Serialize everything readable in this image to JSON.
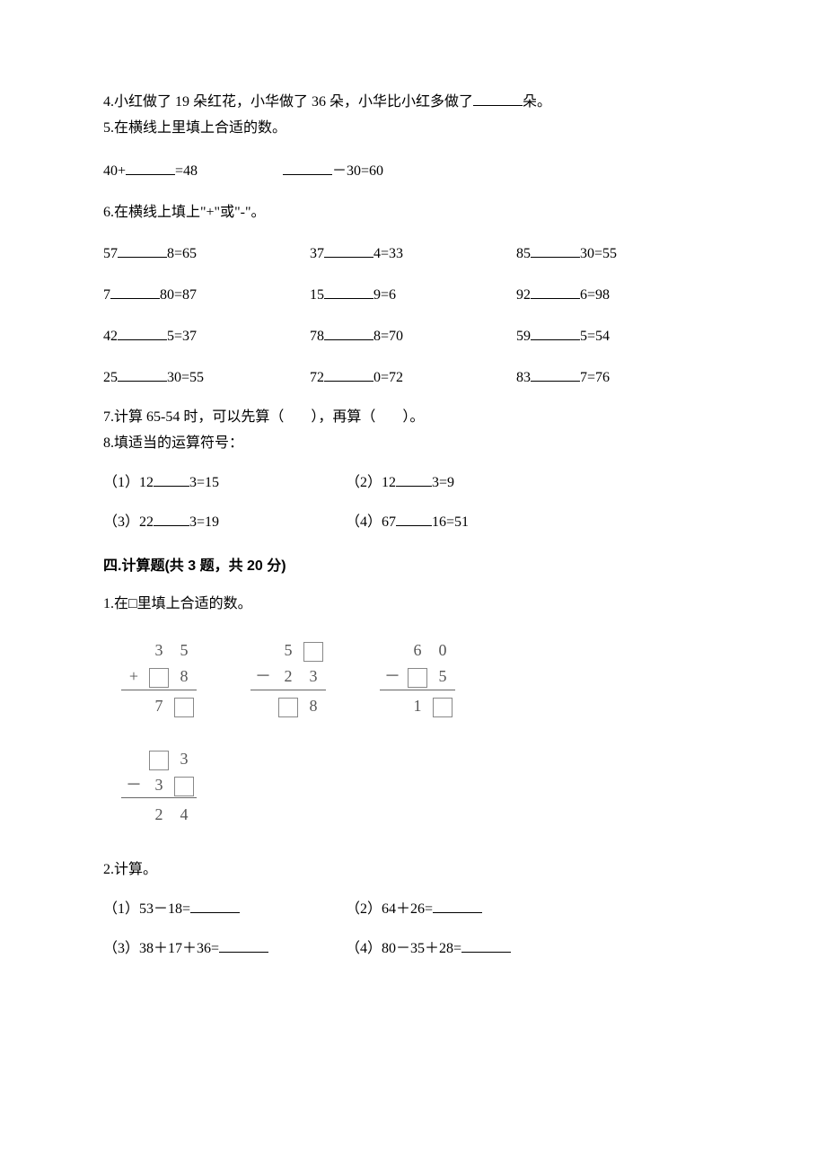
{
  "q4": {
    "text_a": "4.小红做了 19 朵红花，小华做了 36 朵，小华比小红多做了",
    "text_b": "朵。"
  },
  "q5": {
    "title": "5.在横线上里填上合适的数。",
    "p1a": "40+",
    "p1b": "=48",
    "p2a": "－30=60"
  },
  "q6": {
    "title": "6.在横线上填上\"+\"或\"-\"。",
    "r1c1a": "57",
    "r1c1b": "8=65",
    "r1c2a": "37",
    "r1c2b": "4=33",
    "r1c3a": "85",
    "r1c3b": "30=55",
    "r2c1a": "7",
    "r2c1b": "80=87",
    "r2c2a": "15",
    "r2c2b": "9=6",
    "r2c3a": "92",
    "r2c3b": "6=98",
    "r3c1a": "42",
    "r3c1b": "5=37",
    "r3c2a": "78",
    "r3c2b": "8=70",
    "r3c3a": "59",
    "r3c3b": "5=54",
    "r4c1a": "25",
    "r4c1b": "30=55",
    "r4c2a": "72",
    "r4c2b": "0=72",
    "r4c3a": "83",
    "r4c3b": "7=76"
  },
  "q7": {
    "text_a": "7.计算 65‐54 时，可以先算（",
    "text_b": "），再算（",
    "text_c": "）。"
  },
  "q8": {
    "title": "8.填适当的运算符号：",
    "p1a": "（1）12",
    "p1b": "3=15",
    "p2a": "（2）12",
    "p2b": "3=9",
    "p3a": "（3）22",
    "p3b": "3=19",
    "p4a": "（4）67",
    "p4b": "16=51"
  },
  "section4": {
    "title": "四.计算题(共 3 题，共 20 分)"
  },
  "s4q1": {
    "title": "1.在□里填上合适的数。",
    "problems": [
      {
        "op": "+",
        "r1": [
          "3",
          "5"
        ],
        "r2": [
          "□",
          "8"
        ],
        "r3": [
          "7",
          "□"
        ]
      },
      {
        "op": "－",
        "r1": [
          "5",
          "□"
        ],
        "r2": [
          "2",
          "3"
        ],
        "r3": [
          "□",
          "8"
        ]
      },
      {
        "op": "－",
        "r1": [
          "6",
          "0"
        ],
        "r2": [
          "□",
          "5"
        ],
        "r3": [
          "1",
          "□"
        ]
      },
      {
        "op": "－",
        "r1": [
          "□",
          "3"
        ],
        "r2": [
          "3",
          "□"
        ],
        "r3": [
          "2",
          "4"
        ]
      }
    ]
  },
  "s4q2": {
    "title": "2.计算。",
    "p1": "（1）53－18=",
    "p2": "（2）64＋26=",
    "p3": "（3）38＋17＋36=",
    "p4": "（4）80－35＋28="
  }
}
